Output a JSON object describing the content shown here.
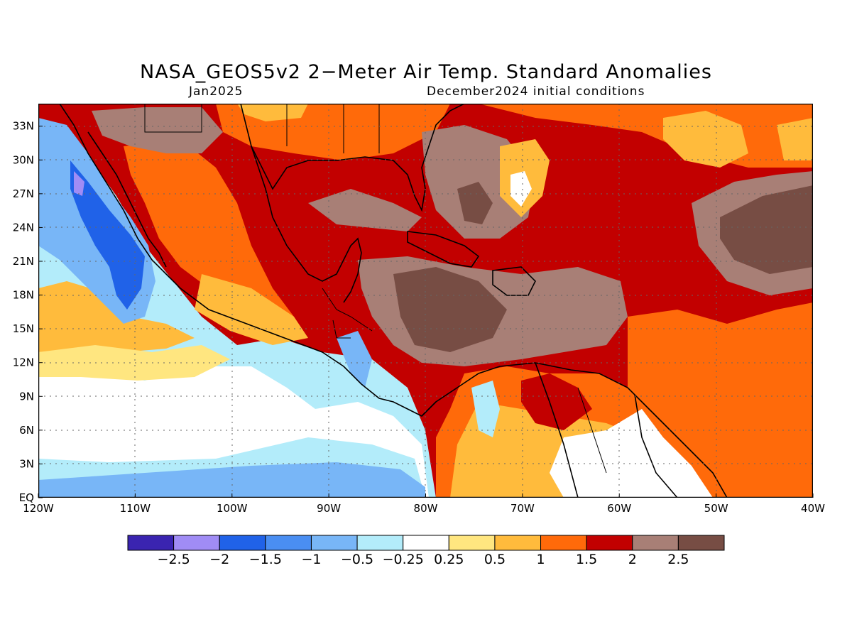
{
  "title": "NASA_GEOS5v2 2−Meter Air Temp. Standard Anomalies",
  "subtitle_left": "Jan2025",
  "subtitle_right": "December2024 initial conditions",
  "lat_ticks": [
    "33N",
    "30N",
    "27N",
    "24N",
    "21N",
    "18N",
    "15N",
    "12N",
    "9N",
    "6N",
    "3N",
    "EQ"
  ],
  "lon_ticks": [
    "120W",
    "110W",
    "100W",
    "90W",
    "80W",
    "70W",
    "60W",
    "50W",
    "40W"
  ],
  "colorbar": {
    "colors": [
      "#3a24b0",
      "#a08cf5",
      "#2062e8",
      "#4a8ef2",
      "#78b6f7",
      "#b3ecfa",
      "#ffffff",
      "#ffe680",
      "#ffbb3c",
      "#ff6a0a",
      "#c20000",
      "#a87f76",
      "#774d44"
    ],
    "labels": [
      "−2.5",
      "−2",
      "−1.5",
      "−1",
      "−0.5",
      "−0.25",
      "0.25",
      "0.5",
      "1",
      "1.5",
      "2",
      "2.5"
    ]
  }
}
